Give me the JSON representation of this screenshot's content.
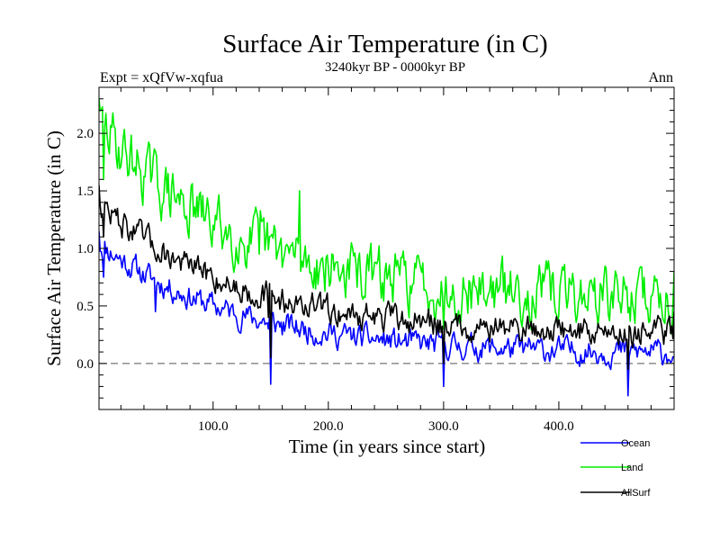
{
  "chart_data": {
    "type": "line",
    "title": "Surface Air Temperature (in C)",
    "subtitle": "3240kyr BP - 0000kyr BP",
    "experiment_label": "Expt = xQfVw-xqfua",
    "season_label": "Ann",
    "xlabel": "Time (in years since start)",
    "ylabel": "Surface Air Temperature (in C)",
    "xlim": [
      1,
      500
    ],
    "ylim": [
      -0.4,
      2.4
    ],
    "x_ticks": [
      100,
      200,
      300,
      400
    ],
    "x_tick_labels": [
      "100.0",
      "200.0",
      "300.0",
      "400.0"
    ],
    "y_ticks": [
      0.0,
      0.5,
      1.0,
      1.5,
      2.0
    ],
    "y_tick_labels": [
      "0.0",
      "0.5",
      "1.0",
      "1.5",
      "2.0"
    ],
    "reference_line": 0.0,
    "series": [
      {
        "name": "Ocean",
        "color": "#0000ff",
        "start": 1.05,
        "end": 0.08,
        "noise": 0.09,
        "seed": 11,
        "anchors": [
          [
            1,
            1.15
          ],
          [
            5,
            0.75
          ],
          [
            50,
            0.45
          ],
          [
            148,
            0.3
          ],
          [
            150,
            -0.18
          ],
          [
            160,
            0.25
          ],
          [
            300,
            -0.2
          ],
          [
            460,
            -0.28
          ],
          [
            500,
            0.05
          ]
        ]
      },
      {
        "name": "Land",
        "color": "#00ee00",
        "start": 2.1,
        "end": 0.55,
        "noise": 0.2,
        "seed": 29,
        "anchors": [
          [
            1,
            2.3
          ],
          [
            5,
            1.6
          ],
          [
            45,
            1.9
          ],
          [
            140,
            0.95
          ],
          [
            175,
            1.5
          ],
          [
            300,
            0.3
          ],
          [
            500,
            0.8
          ]
        ]
      },
      {
        "name": "AllSurf",
        "color": "#000000",
        "start": 1.4,
        "end": 0.25,
        "noise": 0.1,
        "seed": 47,
        "anchors": [
          [
            1,
            1.55
          ],
          [
            5,
            1.1
          ],
          [
            45,
            1.15
          ],
          [
            148,
            0.4
          ],
          [
            150,
            0.05
          ],
          [
            300,
            0.0
          ],
          [
            460,
            -0.05
          ],
          [
            500,
            0.45
          ]
        ]
      }
    ]
  }
}
